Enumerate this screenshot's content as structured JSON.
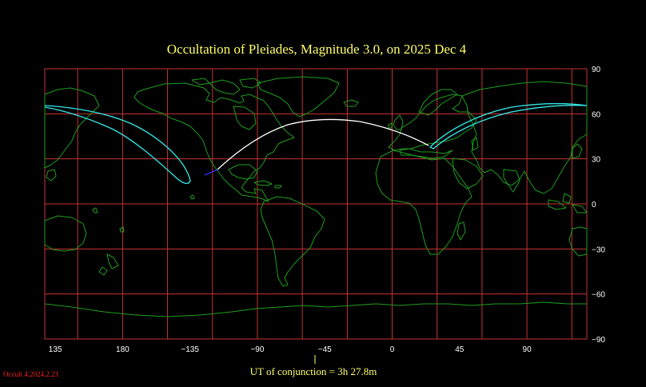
{
  "map": {
    "title": "Occultation  of  Pleiades,      Magnitude 3.0,   on  2025 Dec  4",
    "projection": "equirectangular",
    "lon_range": [
      128,
      490
    ],
    "lat_range": [
      -90,
      90
    ],
    "x_ticks": [
      "135",
      "180",
      "−135",
      "−90",
      "−45",
      "0",
      "45",
      "90"
    ],
    "y_ticks": [
      "90",
      "60",
      "30",
      "0",
      "−30",
      "−60",
      "−90"
    ],
    "grid_color": "#c83232",
    "coast_color": "#1e9e1e",
    "conjunction_label": "UT of conjunction =  3h 27.8m",
    "version_label": "Occult 4.2024.2.23"
  },
  "colors": {
    "title": "#ffff66",
    "visibility_limit": "#33e6e6",
    "path_day": "#ffffff",
    "path_twilight": "#3333ff",
    "ticks": "#ffffff",
    "version": "#ff2020"
  }
}
